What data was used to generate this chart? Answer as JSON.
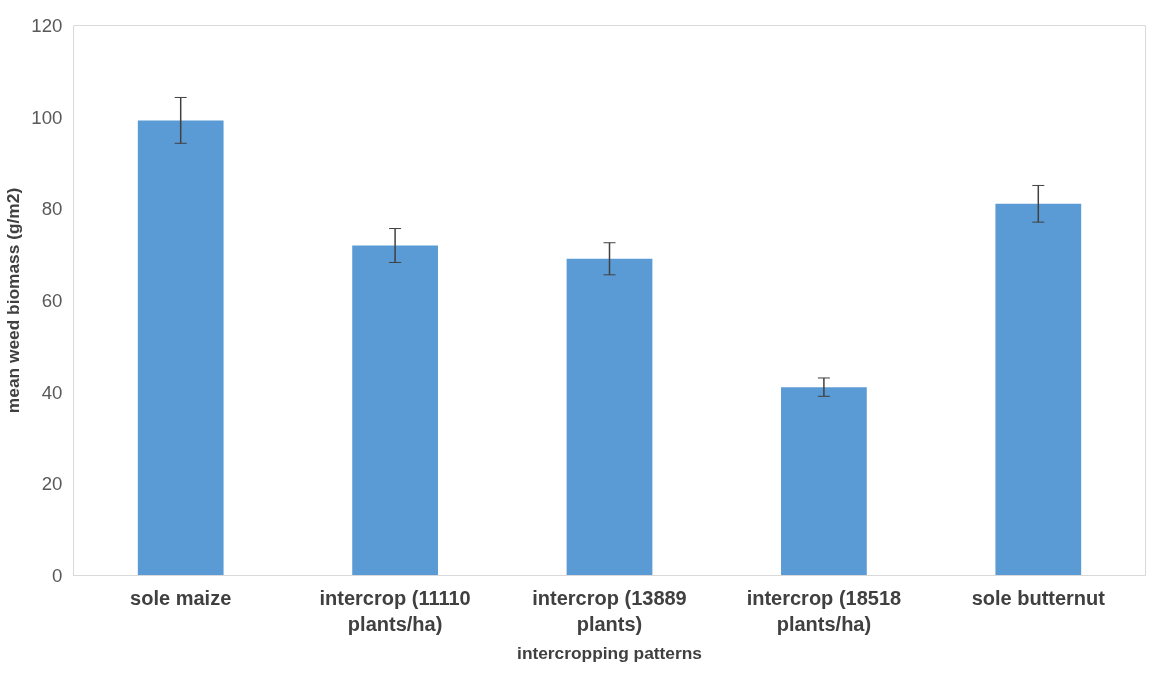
{
  "chart_data": {
    "type": "bar",
    "xlabel": "intercropping patterns",
    "ylabel": "mean weed biomass (g/m2)",
    "categories": [
      "sole maize",
      "intercrop (11110 plants/ha)",
      "intercrop (13889 plants)",
      "intercrop (18518 plants/ha)",
      "sole butternut"
    ],
    "values": [
      99.3,
      72,
      69.1,
      41.1,
      81.1
    ],
    "errors": [
      5,
      3.7,
      3.5,
      2,
      4
    ],
    "color": "#5b9bd5",
    "ylim": [
      0,
      120
    ],
    "yticks": [
      0,
      20,
      40,
      60,
      80,
      100,
      120
    ],
    "grid": false
  }
}
